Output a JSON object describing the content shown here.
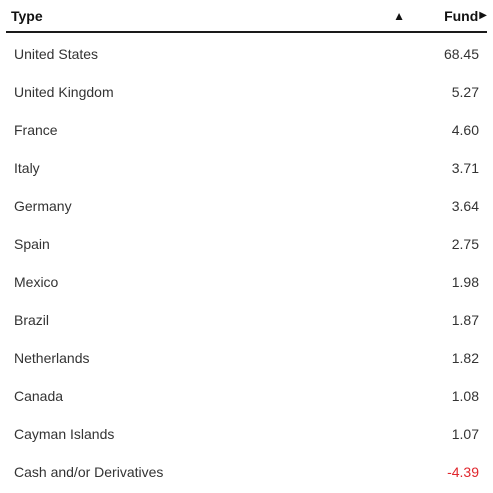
{
  "header": {
    "type_label": "Type",
    "fund_label": "Fund",
    "sort_icon": "triangle-up-icon",
    "scroll_icon": "triangle-right-icon"
  },
  "rows": [
    {
      "name": "United States",
      "value": "68.45"
    },
    {
      "name": "United Kingdom",
      "value": "5.27"
    },
    {
      "name": "France",
      "value": "4.60"
    },
    {
      "name": "Italy",
      "value": "3.71"
    },
    {
      "name": "Germany",
      "value": "3.64"
    },
    {
      "name": "Spain",
      "value": "2.75"
    },
    {
      "name": "Mexico",
      "value": "1.98"
    },
    {
      "name": "Brazil",
      "value": "1.87"
    },
    {
      "name": "Netherlands",
      "value": "1.82"
    },
    {
      "name": "Canada",
      "value": "1.08"
    },
    {
      "name": "Cayman Islands",
      "value": "1.07"
    },
    {
      "name": "Cash and/or Derivatives",
      "value": "-4.39",
      "negative": true
    }
  ],
  "colors": {
    "negative": "#e0262d",
    "header_rule": "#1a1a1a"
  }
}
